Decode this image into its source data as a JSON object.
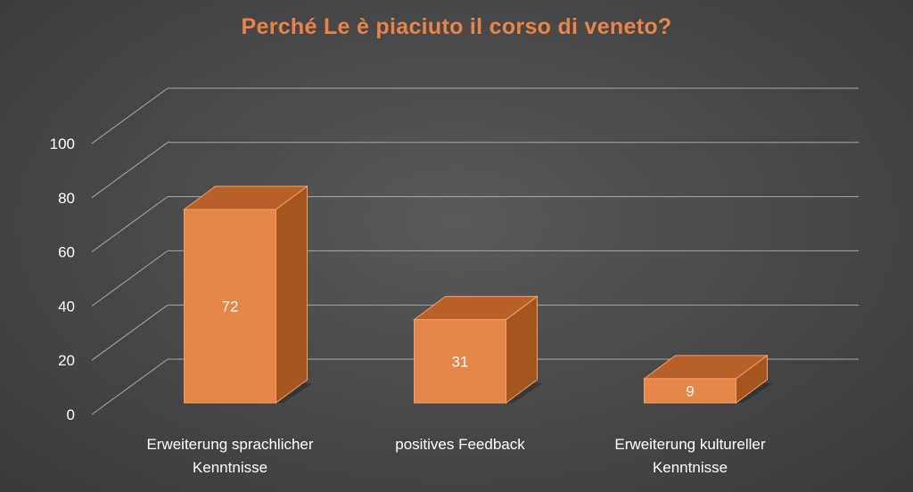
{
  "chart_data": {
    "type": "bar",
    "title": "Perché Le è piaciuto il corso di veneto?",
    "categories": [
      [
        "Erweiterung sprachlicher",
        "Kenntnisse"
      ],
      [
        "positives Feedback"
      ],
      [
        "Erweiterung kultureller",
        "Kenntnisse"
      ]
    ],
    "values": [
      72,
      31,
      9
    ],
    "data_labels": [
      "72",
      "31",
      "9"
    ],
    "ylim": [
      0,
      100
    ],
    "yticks": [
      0,
      20,
      40,
      60,
      80,
      100
    ],
    "ytick_labels": [
      "0",
      "20",
      "40",
      "60",
      "80",
      "100"
    ],
    "grid": true,
    "three_d": true,
    "colors": {
      "bar_front": "#e5874a",
      "bar_top": "#b8612a",
      "bar_side": "#a5561f",
      "bar_edge": "#f0a064",
      "title": "#e8844a",
      "grid": "#a8a8a8",
      "text": "#ffffff"
    }
  }
}
